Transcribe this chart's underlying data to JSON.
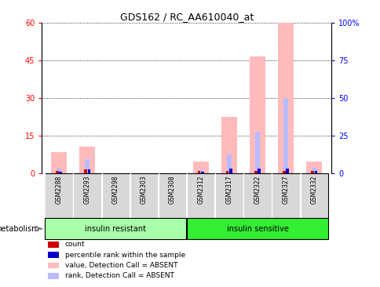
{
  "title": "GDS162 / RC_AA610040_at",
  "samples": [
    "GSM2288",
    "GSM2293",
    "GSM2298",
    "GSM2303",
    "GSM2308",
    "GSM2312",
    "GSM2317",
    "GSM2322",
    "GSM2327",
    "GSM2332"
  ],
  "groups": [
    {
      "label": "insulin resistant",
      "color": "#aaffaa",
      "indices": [
        0,
        1,
        2,
        3,
        4
      ]
    },
    {
      "label": "insulin sensitive",
      "color": "#33ee33",
      "indices": [
        5,
        6,
        7,
        8,
        9
      ]
    }
  ],
  "group_label": "metabolism",
  "pink_values": [
    8.5,
    10.5,
    0,
    0,
    0,
    4.5,
    22.5,
    46.5,
    60.0,
    4.5
  ],
  "blue_values": [
    1.8,
    5.5,
    0,
    0,
    0,
    1.2,
    7.5,
    16.5,
    30.0,
    2.0
  ],
  "red_sq_values": [
    1.0,
    1.5,
    0,
    0,
    0,
    0.8,
    1.0,
    1.0,
    1.0,
    0.8
  ],
  "blue_sq_values": [
    0.6,
    1.5,
    0,
    0,
    0,
    0.6,
    1.8,
    1.8,
    1.8,
    0.8
  ],
  "has_data": [
    1,
    1,
    0,
    0,
    0,
    1,
    1,
    1,
    1,
    1
  ],
  "ylim_left": [
    0,
    60
  ],
  "ylim_right": [
    0,
    100
  ],
  "yticks_left": [
    0,
    15,
    30,
    45,
    60
  ],
  "yticks_right": [
    0,
    25,
    50,
    75,
    100
  ],
  "ytick_labels_right": [
    "0",
    "25",
    "50",
    "75",
    "100%"
  ],
  "pink_color": "#ffbbbb",
  "blue_color": "#bbbbff",
  "red_sq_color": "#cc0000",
  "blue_sq_color": "#0000cc",
  "pink_bar_width": 0.55,
  "blue_bar_width": 0.18,
  "legend_items": [
    {
      "color": "#cc0000",
      "label": "count"
    },
    {
      "color": "#0000cc",
      "label": "percentile rank within the sample"
    },
    {
      "color": "#ffbbbb",
      "label": "value, Detection Call = ABSENT"
    },
    {
      "color": "#bbbbff",
      "label": "rank, Detection Call = ABSENT"
    }
  ],
  "bg_color": "#ffffff",
  "plot_bg_color": "#ffffff",
  "sample_box_color": "#d8d8d8"
}
